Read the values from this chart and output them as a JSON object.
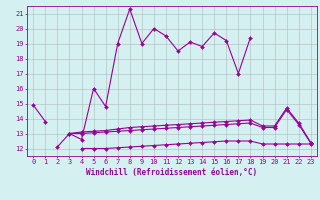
{
  "xlabel": "Windchill (Refroidissement éolien,°C)",
  "x": [
    0,
    1,
    2,
    3,
    4,
    5,
    6,
    7,
    8,
    9,
    10,
    11,
    12,
    13,
    14,
    15,
    16,
    17,
    18,
    19,
    20,
    21,
    22,
    23
  ],
  "line1": [
    14.9,
    13.8,
    null,
    null,
    null,
    null,
    null,
    null,
    null,
    null,
    null,
    null,
    null,
    null,
    null,
    null,
    null,
    null,
    null,
    null,
    null,
    null,
    null,
    null
  ],
  "line_main": [
    null,
    null,
    12.1,
    13.0,
    12.6,
    16.0,
    14.8,
    19.0,
    21.3,
    19.0,
    20.0,
    19.5,
    18.5,
    19.1,
    18.8,
    19.7,
    19.2,
    17.0,
    19.4,
    null,
    null,
    null,
    null,
    null
  ],
  "line2": [
    null,
    null,
    null,
    13.0,
    13.1,
    13.15,
    13.2,
    13.3,
    13.4,
    13.45,
    13.5,
    13.55,
    13.6,
    13.65,
    13.7,
    13.75,
    13.8,
    13.85,
    13.9,
    13.5,
    13.5,
    14.7,
    13.7,
    12.4
  ],
  "line3": [
    null,
    null,
    null,
    13.0,
    13.0,
    13.05,
    13.1,
    13.15,
    13.2,
    13.25,
    13.3,
    13.35,
    13.4,
    13.45,
    13.5,
    13.55,
    13.6,
    13.65,
    13.7,
    13.4,
    13.4,
    14.6,
    13.6,
    12.35
  ],
  "line4": [
    null,
    null,
    null,
    null,
    12.0,
    12.0,
    12.0,
    12.05,
    12.1,
    12.15,
    12.2,
    12.25,
    12.3,
    12.35,
    12.4,
    12.45,
    12.5,
    12.5,
    12.5,
    12.3,
    12.3,
    12.3,
    12.3,
    12.3
  ],
  "ylim": [
    11.5,
    21.5
  ],
  "xlim": [
    -0.5,
    23.5
  ],
  "yticks": [
    12,
    13,
    14,
    15,
    16,
    17,
    18,
    19,
    20,
    21
  ],
  "xticks": [
    0,
    1,
    2,
    3,
    4,
    5,
    6,
    7,
    8,
    9,
    10,
    11,
    12,
    13,
    14,
    15,
    16,
    17,
    18,
    19,
    20,
    21,
    22,
    23
  ],
  "line_color": "#990099",
  "bg_color": "#d4f0f0",
  "grid_color": "#aaaaaa",
  "marker": "D",
  "markersize": 2.0
}
